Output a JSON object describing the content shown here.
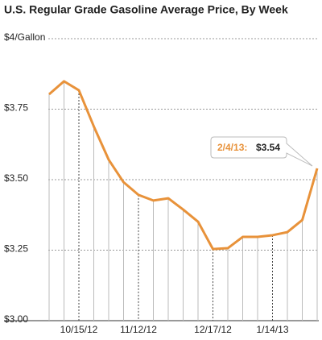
{
  "chart_data": {
    "type": "line",
    "title": "U.S. Regular Grade Gasoline Average Price, By Week",
    "categories": [
      null,
      null,
      "10/15/12",
      null,
      null,
      null,
      "11/12/12",
      null,
      null,
      null,
      null,
      "12/17/12",
      null,
      null,
      null,
      "1/14/13",
      null,
      null,
      null
    ],
    "series": [
      {
        "name": null,
        "color": "#e8923a",
        "values": [
          3.803,
          3.849,
          3.817,
          3.689,
          3.571,
          3.491,
          3.446,
          3.426,
          3.434,
          3.394,
          3.351,
          3.254,
          3.257,
          3.297,
          3.297,
          3.303,
          3.314,
          3.357,
          3.54
        ]
      }
    ],
    "ylim": [
      3,
      4
    ],
    "yticks": [
      {
        "value": 3,
        "label": "$3.00"
      },
      {
        "value": 3.25,
        "label": "$3.25"
      },
      {
        "value": 3.5,
        "label": "$3.50"
      },
      {
        "value": 3.75,
        "label": "$3.75"
      },
      {
        "value": 4,
        "label": "$4/Gallon"
      }
    ],
    "grid": true,
    "annotation": {
      "label": "2/4/13:",
      "value_label": "$3.54"
    }
  }
}
